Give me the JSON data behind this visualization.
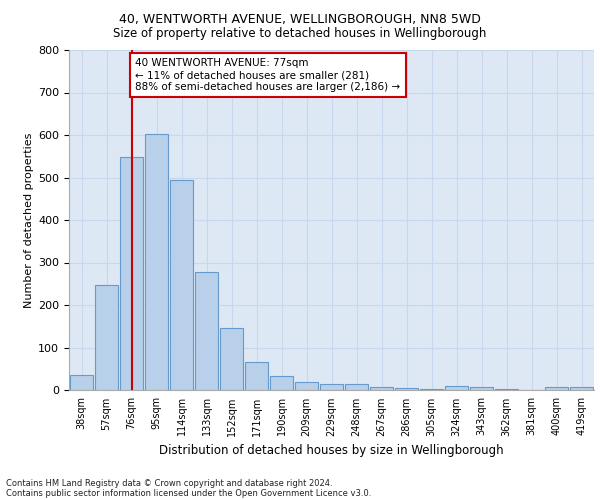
{
  "title1": "40, WENTWORTH AVENUE, WELLINGBOROUGH, NN8 5WD",
  "title2": "Size of property relative to detached houses in Wellingborough",
  "xlabel": "Distribution of detached houses by size in Wellingborough",
  "ylabel": "Number of detached properties",
  "categories": [
    "38sqm",
    "57sqm",
    "76sqm",
    "95sqm",
    "114sqm",
    "133sqm",
    "152sqm",
    "171sqm",
    "190sqm",
    "209sqm",
    "229sqm",
    "248sqm",
    "267sqm",
    "286sqm",
    "305sqm",
    "324sqm",
    "343sqm",
    "362sqm",
    "381sqm",
    "400sqm",
    "419sqm"
  ],
  "values": [
    35,
    248,
    548,
    603,
    493,
    277,
    147,
    65,
    33,
    20,
    15,
    15,
    8,
    5,
    3,
    10,
    8,
    3,
    0,
    8,
    8
  ],
  "bar_color": "#b8d0ea",
  "bar_edge_color": "#6699cc",
  "property_bar_index": 2,
  "annotation_title": "40 WENTWORTH AVENUE: 77sqm",
  "annotation_line1": "← 11% of detached houses are smaller (281)",
  "annotation_line2": "88% of semi-detached houses are larger (2,186) →",
  "vline_color": "#cc0000",
  "annotation_box_color": "#cc0000",
  "footnote1": "Contains HM Land Registry data © Crown copyright and database right 2024.",
  "footnote2": "Contains public sector information licensed under the Open Government Licence v3.0.",
  "ylim": [
    0,
    800
  ],
  "yticks": [
    0,
    100,
    200,
    300,
    400,
    500,
    600,
    700,
    800
  ],
  "grid_color": "#c8d8ec",
  "background_color": "#dde8f4"
}
